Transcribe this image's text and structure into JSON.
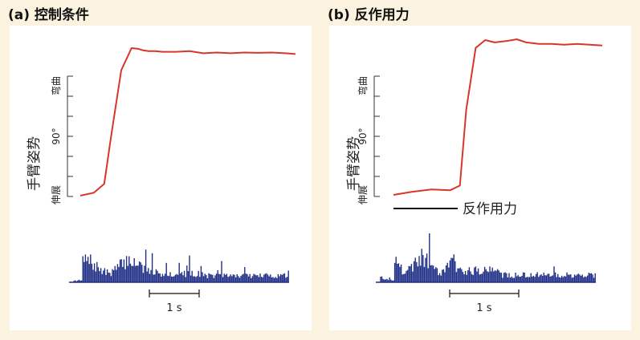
{
  "panels": [
    {
      "title": "(a) 控制条件",
      "ylabel": "手臂姿势",
      "tick_top": "弯曲",
      "tick_mid": "90°",
      "tick_bottom": "伸展",
      "scale_label": "1 s",
      "force_label": "",
      "colors": {
        "trace": "#d8362a",
        "emg": "#1f2f86"
      }
    },
    {
      "title": "(b) 反作用力",
      "ylabel": "手臂姿势",
      "tick_top": "弯曲",
      "tick_mid": "90°",
      "tick_bottom": "伸展",
      "scale_label": "1 s",
      "force_label": "反作用力",
      "colors": {
        "trace": "#d8362a",
        "emg": "#1f2f86"
      }
    }
  ],
  "chart_data": [
    {
      "type": "line",
      "title": "(a) 控制条件",
      "ylabel": "手臂姿势",
      "time_scale_s": 1,
      "x": [
        0,
        0.2,
        0.35,
        0.45,
        0.6,
        0.75,
        0.85,
        0.92,
        1.0,
        1.1,
        1.2,
        1.4,
        1.6,
        1.8,
        2.0,
        2.2,
        2.4,
        2.6,
        2.8,
        3.0,
        3.15
      ],
      "y": [
        0,
        0.02,
        0.08,
        0.4,
        0.85,
        1.0,
        0.995,
        0.985,
        0.98,
        0.98,
        0.975,
        0.975,
        0.98,
        0.965,
        0.97,
        0.965,
        0.97,
        0.968,
        0.97,
        0.965,
        0.96
      ]
    },
    {
      "type": "line",
      "title": "(b) 反作用力",
      "ylabel": "手臂姿势",
      "time_scale_s": 1,
      "x": [
        0,
        0.3,
        0.6,
        0.9,
        1.05,
        1.15,
        1.3,
        1.45,
        1.6,
        1.8,
        1.95,
        2.1,
        2.3,
        2.5,
        2.7,
        2.9,
        3.1,
        3.3
      ],
      "y": [
        0,
        0.02,
        0.035,
        0.03,
        0.06,
        0.55,
        0.95,
        1.0,
        0.985,
        0.995,
        1.005,
        0.985,
        0.975,
        0.975,
        0.97,
        0.975,
        0.97,
        0.965
      ]
    }
  ]
}
